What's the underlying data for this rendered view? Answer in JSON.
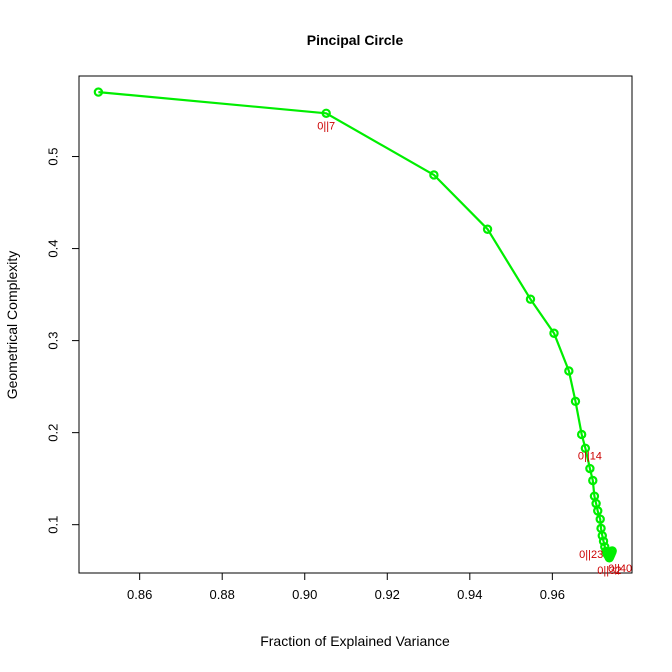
{
  "chart_data": {
    "type": "scatter",
    "title": "Pincipal Circle",
    "xlabel": "Fraction of Explained Variance",
    "ylabel": "Geometrical Complexity",
    "xlim": [
      0.8453,
      0.9793
    ],
    "ylim": [
      0.0475,
      0.5875
    ],
    "xticks": [
      0.86,
      0.88,
      0.9,
      0.92,
      0.94,
      0.96
    ],
    "xtick_labels": [
      "0.86",
      "0.88",
      "0.90",
      "0.92",
      "0.94",
      "0.96"
    ],
    "yticks": [
      0.1,
      0.2,
      0.3,
      0.4,
      0.5
    ],
    "ytick_labels": [
      "0.1",
      "0.2",
      "0.3",
      "0.4",
      "0.5"
    ],
    "grid": false,
    "series_color": "#00ee00",
    "annotation_color": "#cc0000",
    "x": [
      0.85,
      0.9052,
      0.9313,
      0.9443,
      0.9547,
      0.9604,
      0.964,
      0.9656,
      0.9671,
      0.968,
      0.9691,
      0.9698,
      0.9702,
      0.9706,
      0.971,
      0.9716,
      0.9718,
      0.9721,
      0.9724,
      0.9727,
      0.973,
      0.9733,
      0.9736,
      0.9738,
      0.974,
      0.9742,
      0.9744,
      0.9745
    ],
    "y": [
      0.57,
      0.547,
      0.48,
      0.421,
      0.345,
      0.308,
      0.267,
      0.234,
      0.198,
      0.183,
      0.161,
      0.148,
      0.131,
      0.123,
      0.115,
      0.106,
      0.096,
      0.088,
      0.082,
      0.076,
      0.071,
      0.068,
      0.066,
      0.064,
      0.066,
      0.068,
      0.07,
      0.0715
    ],
    "annotations": [
      {
        "text": "0||7",
        "x": 0.9052,
        "y": 0.547,
        "pos": "below"
      },
      {
        "text": "0||14",
        "x": 0.9691,
        "y": 0.161,
        "pos": "above"
      },
      {
        "text": "0||23",
        "x": 0.9733,
        "y": 0.068,
        "pos": "left"
      },
      {
        "text": "0||40",
        "x": 0.974,
        "y": 0.066,
        "pos": "below"
      },
      {
        "text": "0||32",
        "x": 0.9738,
        "y": 0.064,
        "pos": "below"
      }
    ]
  }
}
